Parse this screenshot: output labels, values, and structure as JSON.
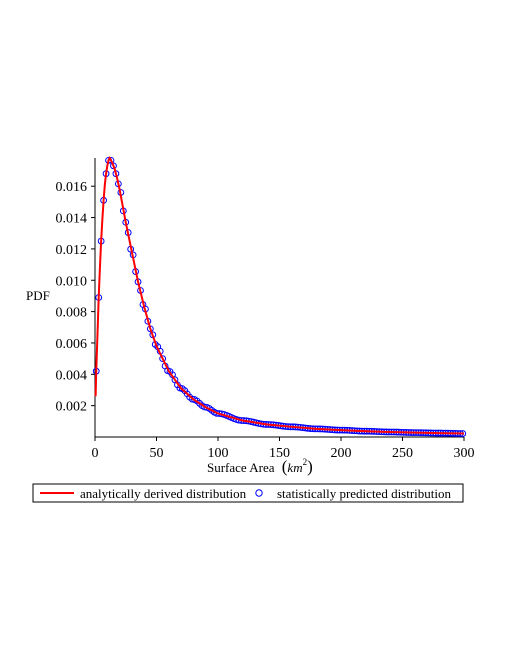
{
  "chart_data": {
    "type": "line",
    "xlabel": "Surface Area",
    "xlabel_unit_base": "km",
    "xlabel_unit_exp": "2",
    "ylabel": "PDF",
    "xlim": [
      0,
      300
    ],
    "ylim": [
      0,
      0.0178
    ],
    "x_ticks": [
      0,
      50,
      100,
      150,
      200,
      250,
      300
    ],
    "y_ticks": [
      0.002,
      0.004,
      0.006,
      0.008,
      0.01,
      0.012,
      0.014,
      0.016
    ],
    "y_tick_labels": [
      "0.002",
      "0.004",
      "0.006",
      "0.008",
      "0.010",
      "0.012",
      "0.014",
      "0.016"
    ],
    "grid": false,
    "legend_position": "bottom",
    "series": [
      {
        "name": "analytically derived distribution",
        "style": "line",
        "color": "#ff0000",
        "x": [
          0.5,
          1,
          2,
          3,
          4,
          5,
          6,
          7,
          8,
          9,
          10,
          11,
          12,
          14,
          16,
          18,
          20,
          25,
          30,
          35,
          40,
          45,
          50,
          60,
          70,
          80,
          90,
          100,
          120,
          140,
          160,
          180,
          200,
          220,
          240,
          260,
          280,
          300
        ],
        "y": [
          0.0026,
          0.0042,
          0.0065,
          0.0089,
          0.0108,
          0.0125,
          0.0139,
          0.0151,
          0.0161,
          0.0168,
          0.0173,
          0.01765,
          0.0178,
          0.0175,
          0.0171,
          0.0165,
          0.0158,
          0.0137,
          0.0118,
          0.0099,
          0.0083,
          0.0069,
          0.0058,
          0.0042,
          0.0031,
          0.0024,
          0.0019,
          0.0015,
          0.00105,
          0.0008,
          0.00065,
          0.00052,
          0.00044,
          0.00037,
          0.00032,
          0.00028,
          0.00025,
          0.00022
        ]
      },
      {
        "name": "statistically predicted distribution",
        "style": "markers",
        "marker": "circle",
        "color": "#0000ff",
        "x_start": 1,
        "x_step": 2,
        "count": 150
      }
    ]
  }
}
